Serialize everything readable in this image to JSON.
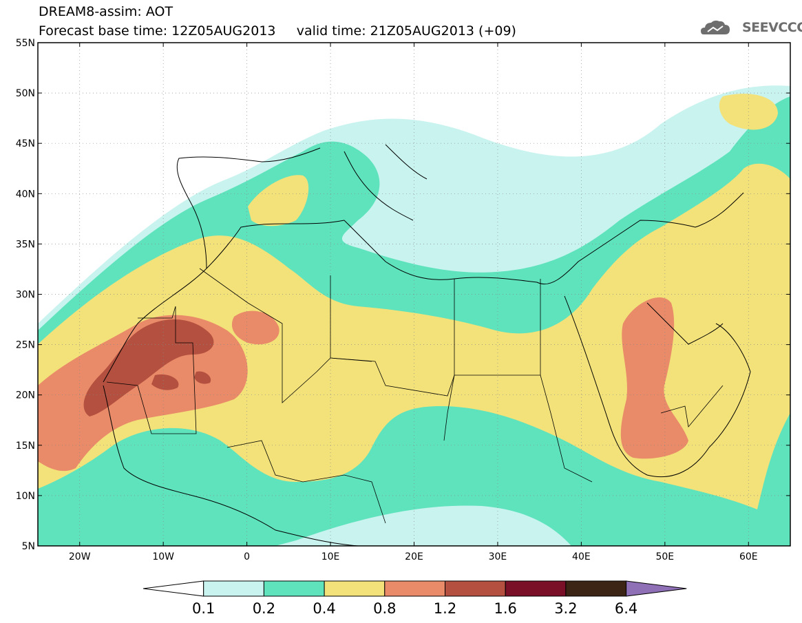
{
  "header": {
    "title": "DREAM8-assim: AOT",
    "base_time_label": "Forecast base time:",
    "base_time": "12Z05AUG2013",
    "valid_time_label": "valid time:",
    "valid_time": "21Z05AUG2013 (+09)"
  },
  "logo": {
    "text": "SEEVCCC",
    "icon": "cloud-logo-icon",
    "color": "#6e6e6e"
  },
  "map": {
    "lon_range": [
      -25,
      65
    ],
    "lat_range": [
      5,
      55
    ],
    "lat_ticks": [
      "5N",
      "10N",
      "15N",
      "20N",
      "25N",
      "30N",
      "35N",
      "40N",
      "45N",
      "50N",
      "55N"
    ],
    "lon_ticks": [
      "20W",
      "10W",
      "0",
      "10E",
      "20E",
      "30E",
      "40E",
      "50E",
      "60E"
    ],
    "gridlines": "dotted"
  },
  "legend": {
    "labels": [
      "0.1",
      "0.2",
      "0.4",
      "0.8",
      "1.2",
      "1.6",
      "3.2",
      "6.4"
    ],
    "colors": [
      "#ffffff",
      "#c8f3ef",
      "#5ee3bc",
      "#f3e27a",
      "#e98b68",
      "#b4503f",
      "#7a0f28",
      "#3d2515",
      "#8f6fb5"
    ]
  }
}
